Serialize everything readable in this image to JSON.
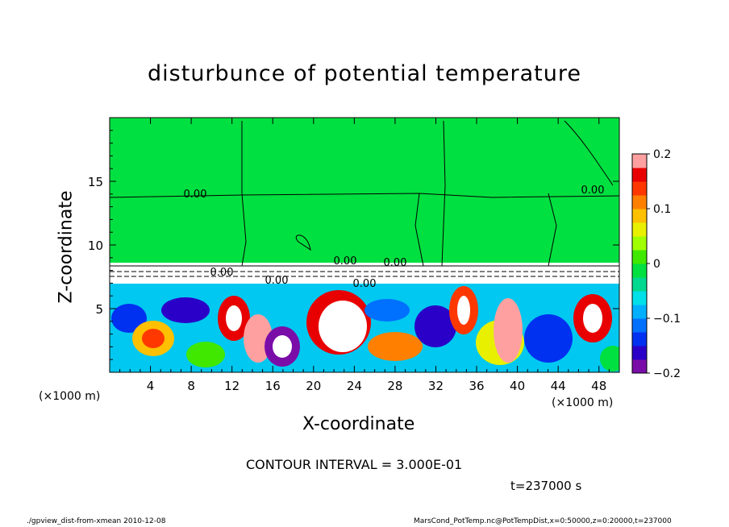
{
  "chart_data": {
    "type": "heatmap",
    "title": "disturbunce of potential temperature",
    "xlabel": "X-coordinate",
    "ylabel": "Z-coordinate",
    "x_unit": "(×1000 m)",
    "x_ticks": [
      4,
      8,
      12,
      16,
      20,
      24,
      28,
      32,
      36,
      40,
      44,
      48
    ],
    "y_ticks": [
      5,
      10,
      15
    ],
    "xlim": [
      0,
      50
    ],
    "ylim": [
      0,
      20
    ],
    "colorbar": {
      "ticks": [
        "0.2",
        "0.1",
        "0",
        "−0.1",
        "−0.2"
      ],
      "range": [
        -0.2,
        0.2
      ],
      "colors": [
        "#7a0da8",
        "#2a00c8",
        "#0030f0",
        "#0070ff",
        "#00b0ff",
        "#00e0e8",
        "#00d890",
        "#00e040",
        "#40e800",
        "#a0ff00",
        "#e8f000",
        "#ffc000",
        "#ff8000",
        "#ff3800",
        "#e80000",
        "#ffa0a0"
      ]
    },
    "contour_labels": [
      "0.00",
      "0.00",
      "0.00",
      "0.00",
      "0.00",
      "0.00",
      "0.00"
    ],
    "contour_interval_text": "CONTOUR INTERVAL = 3.000E-01",
    "time_text": "t=237000 s"
  },
  "footer": {
    "left": "./gpview_dist-from-xmean   2010-12-08",
    "right": "MarsCond_PotTemp.nc@PotTempDist,x=0:50000,z=0:20000,t=237000"
  }
}
